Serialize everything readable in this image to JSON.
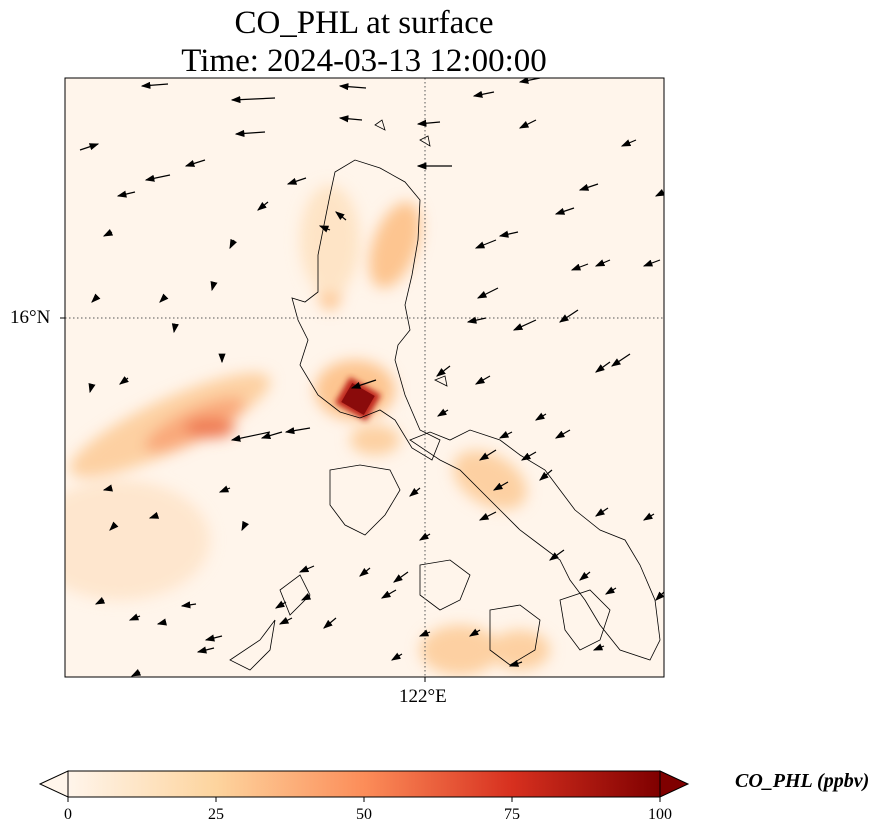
{
  "title": {
    "line1": "CO_PHL at surface",
    "line2": "Time: 2024-03-13 12:00:00"
  },
  "axes": {
    "lon_tick": "122°E",
    "lat_tick": "16°N"
  },
  "colorbar": {
    "label": "CO_PHL (ppbv)",
    "ticks": [
      "0",
      "25",
      "50",
      "75",
      "100"
    ],
    "range": [
      0,
      100
    ],
    "colormap": [
      "#fff5eb",
      "#fdd49e",
      "#fc8d59",
      "#d7301f",
      "#7f0000"
    ],
    "extend": "both"
  },
  "colors": {
    "coastline": "#000000",
    "gridline": "#555555",
    "vectors": "#000000"
  }
}
